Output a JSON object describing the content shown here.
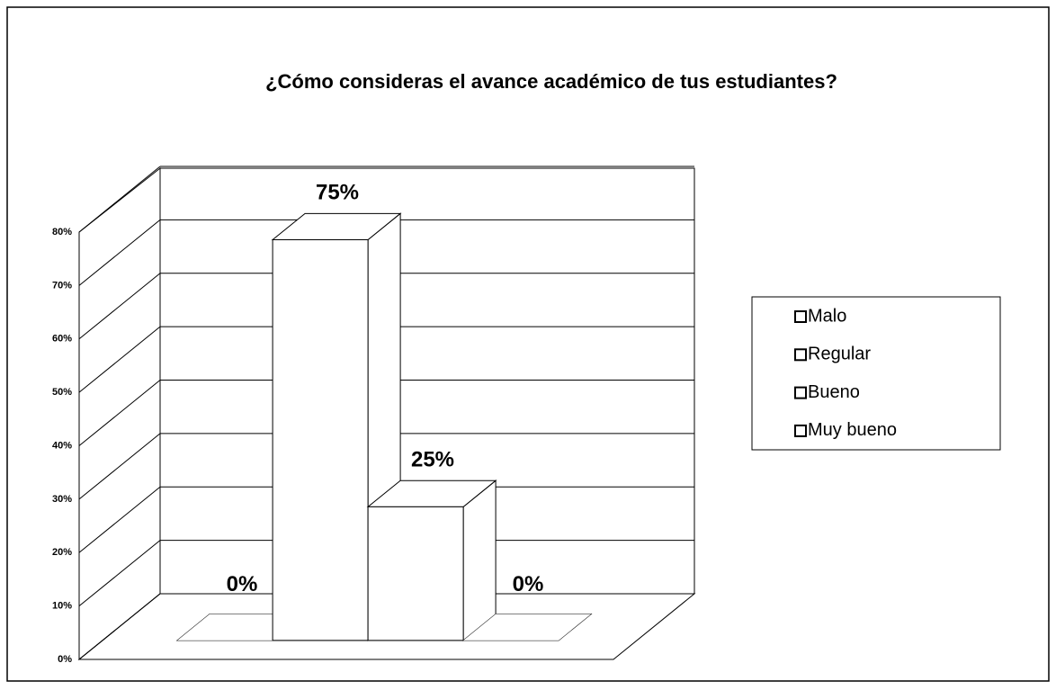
{
  "chart_data": {
    "type": "bar3d",
    "title": "¿Cómo consideras el avance académico de tus estudiantes?",
    "series": [
      {
        "name": "Malo",
        "color": "#ffffff",
        "values": [
          0
        ],
        "value_labels": [
          "0%"
        ]
      },
      {
        "name": "Regular",
        "color": "#ffffff",
        "values": [
          75
        ],
        "value_labels": [
          "75%"
        ]
      },
      {
        "name": "Bueno",
        "color": "#ffffff",
        "values": [
          25
        ],
        "value_labels": [
          "25%"
        ]
      },
      {
        "name": "Muy bueno",
        "color": "#ffffff",
        "values": [
          0
        ],
        "value_labels": [
          "0%"
        ]
      }
    ],
    "ylim": [
      0,
      80
    ],
    "yticks": [
      {
        "value": 0,
        "label": "0%"
      },
      {
        "value": 10,
        "label": "10%"
      },
      {
        "value": 20,
        "label": "20%"
      },
      {
        "value": 30,
        "label": "30%"
      },
      {
        "value": 40,
        "label": "40%"
      },
      {
        "value": 50,
        "label": "50%"
      },
      {
        "value": 60,
        "label": "60%"
      },
      {
        "value": 70,
        "label": "70%"
      },
      {
        "value": 80,
        "label": "80%"
      }
    ],
    "grid": true,
    "legend": "right"
  }
}
